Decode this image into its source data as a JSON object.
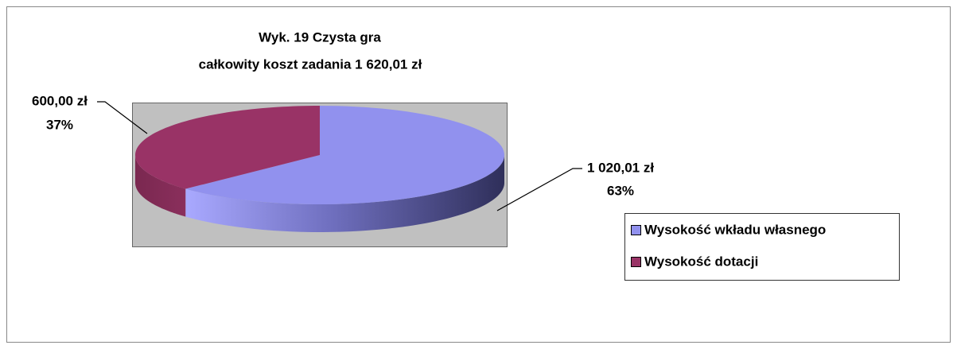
{
  "chart_data": {
    "type": "pie",
    "title": "Wyk. 19 Czysta gra",
    "subtitle": "całkowity koszt zadania 1 620,01 zł",
    "categories": [
      "Wysokość wkładu własnego",
      "Wysokość dotacji"
    ],
    "values": [
      1020.01,
      600.0
    ],
    "value_labels": [
      "1 020,01 zł",
      "600,00 zł"
    ],
    "percent_labels": [
      "63%",
      "37%"
    ],
    "colors": [
      "#9191ee",
      "#993366"
    ],
    "legend": "right"
  }
}
